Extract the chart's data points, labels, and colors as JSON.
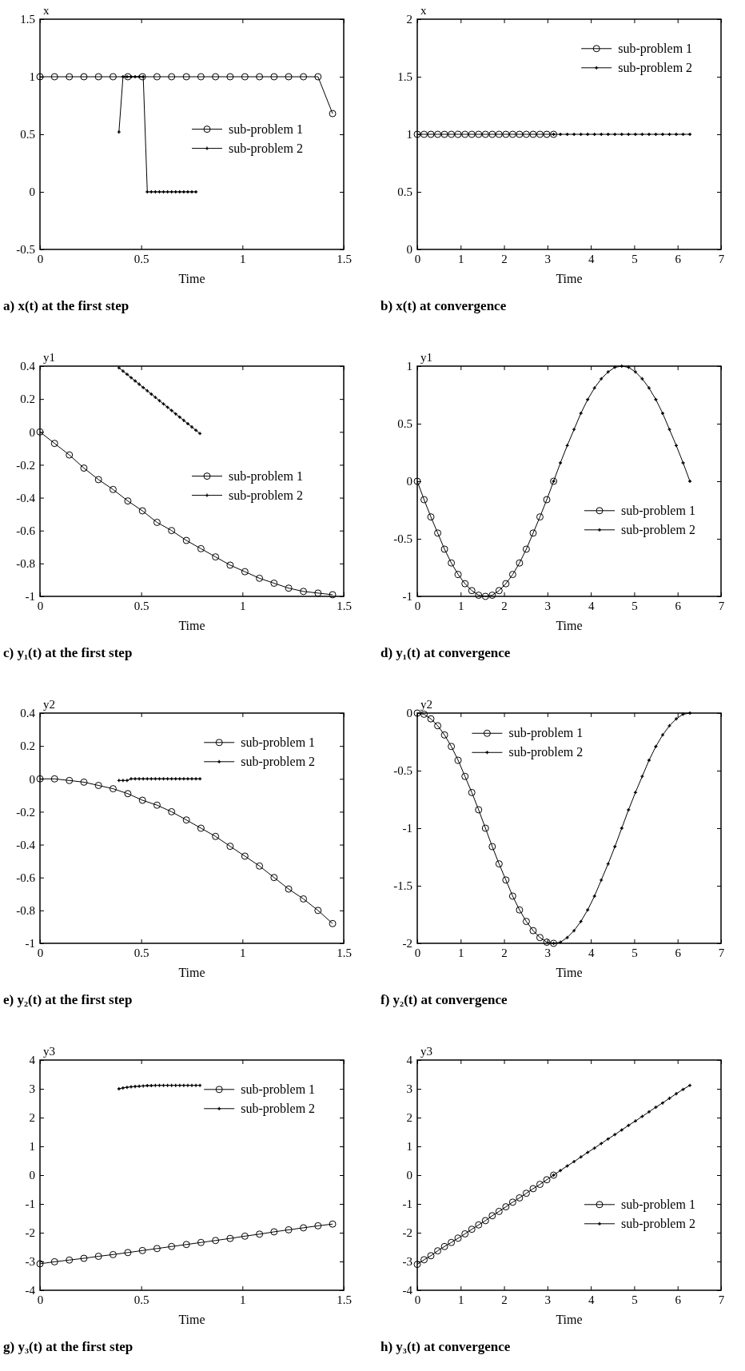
{
  "chart_data": [
    {
      "type": "line",
      "title": "a) x(t) at the first step",
      "xlabel": "Time",
      "ylabel": "x",
      "xlim": [
        0,
        1.5
      ],
      "xticks": [
        0,
        0.5,
        1,
        1.5
      ],
      "ylim": [
        -0.5,
        1.5
      ],
      "yticks": [
        -0.5,
        0,
        0.5,
        1,
        1.5
      ],
      "legend": "right",
      "series": [
        {
          "name": "sub-problem 1",
          "color": "#000000",
          "marker": "circle",
          "x": [
            0,
            0.072,
            0.145,
            0.217,
            0.289,
            0.361,
            0.434,
            0.506,
            0.578,
            0.65,
            0.723,
            0.795,
            0.867,
            0.939,
            1.012,
            1.084,
            1.156,
            1.228,
            1.301,
            1.373,
            1.445
          ],
          "values": [
            1,
            1,
            1,
            1,
            1,
            1,
            1,
            1,
            1,
            1,
            1,
            1,
            1,
            1,
            1,
            1,
            1,
            1,
            1,
            1,
            0.68
          ]
        },
        {
          "name": "sub-problem 2",
          "color": "#000000",
          "marker": "cross",
          "x": [
            0.39,
            0.41,
            0.43,
            0.45,
            0.47,
            0.49,
            0.51,
            0.53,
            0.55,
            0.57,
            0.59,
            0.61,
            0.63,
            0.65,
            0.67,
            0.69,
            0.71,
            0.73,
            0.75,
            0.77
          ],
          "values": [
            0.52,
            1,
            1,
            1,
            1,
            1,
            1,
            0,
            0,
            0,
            0,
            0,
            0,
            0,
            0,
            0,
            0,
            0,
            0,
            0
          ]
        }
      ]
    },
    {
      "type": "line",
      "title": "b) x(t) at convergence",
      "xlabel": "Time",
      "ylabel": "x",
      "xlim": [
        0,
        7
      ],
      "xticks": [
        0,
        1,
        2,
        3,
        4,
        5,
        6,
        7
      ],
      "ylim": [
        0,
        2
      ],
      "yticks": [
        0,
        0.5,
        1,
        1.5,
        2
      ],
      "legend": "top right",
      "series": [
        {
          "name": "sub-problem 1",
          "color": "#000000",
          "marker": "circle",
          "x": [
            0,
            0.157,
            0.314,
            0.471,
            0.628,
            0.785,
            0.942,
            1.1,
            1.257,
            1.414,
            1.571,
            1.728,
            1.885,
            2.042,
            2.199,
            2.356,
            2.513,
            2.67,
            2.827,
            2.985,
            3.142
          ],
          "values": [
            1,
            1,
            1,
            1,
            1,
            1,
            1,
            1,
            1,
            1,
            1,
            1,
            1,
            1,
            1,
            1,
            1,
            1,
            1,
            1,
            1
          ]
        },
        {
          "name": "sub-problem 2",
          "color": "#000000",
          "marker": "cross",
          "x": [
            3.142,
            3.299,
            3.456,
            3.613,
            3.77,
            3.927,
            4.084,
            4.241,
            4.398,
            4.555,
            4.712,
            4.869,
            5.027,
            5.184,
            5.341,
            5.498,
            5.655,
            5.812,
            5.969,
            6.126,
            6.283
          ],
          "values": [
            1,
            1,
            1,
            1,
            1,
            1,
            1,
            1,
            1,
            1,
            1,
            1,
            1,
            1,
            1,
            1,
            1,
            1,
            1,
            1,
            1
          ]
        }
      ]
    },
    {
      "type": "line",
      "title": "c) y₁(t) at the first step",
      "xlabel": "Time",
      "ylabel": "y1",
      "xlim": [
        0,
        1.5
      ],
      "xticks": [
        0,
        0.5,
        1,
        1.5
      ],
      "ylim": [
        -1,
        0.4
      ],
      "yticks": [
        -1,
        -0.8,
        -0.6,
        -0.4,
        -0.2,
        0,
        0.2,
        0.4
      ],
      "legend": "right",
      "series": [
        {
          "name": "sub-problem 1",
          "color": "#000000",
          "marker": "circle",
          "x": [
            0,
            0.072,
            0.145,
            0.217,
            0.289,
            0.361,
            0.434,
            0.506,
            0.578,
            0.65,
            0.723,
            0.795,
            0.867,
            0.939,
            1.012,
            1.084,
            1.156,
            1.228,
            1.301,
            1.373,
            1.445
          ],
          "values": [
            0,
            -0.07,
            -0.14,
            -0.22,
            -0.29,
            -0.35,
            -0.42,
            -0.48,
            -0.55,
            -0.6,
            -0.66,
            -0.71,
            -0.76,
            -0.81,
            -0.85,
            -0.89,
            -0.92,
            -0.95,
            -0.97,
            -0.98,
            -0.99
          ]
        },
        {
          "name": "sub-problem 2",
          "color": "#000000",
          "marker": "cross",
          "x": [
            0.39,
            0.41,
            0.43,
            0.45,
            0.47,
            0.49,
            0.51,
            0.53,
            0.55,
            0.57,
            0.59,
            0.61,
            0.63,
            0.65,
            0.67,
            0.69,
            0.71,
            0.73,
            0.75,
            0.77,
            0.79
          ],
          "values": [
            0.39,
            0.37,
            0.35,
            0.33,
            0.31,
            0.29,
            0.27,
            0.25,
            0.23,
            0.21,
            0.19,
            0.17,
            0.15,
            0.13,
            0.11,
            0.09,
            0.07,
            0.05,
            0.03,
            0.01,
            -0.01
          ]
        }
      ]
    },
    {
      "type": "line",
      "title": "d) y₁(t) at convergence",
      "xlabel": "Time",
      "ylabel": "y1",
      "xlim": [
        0,
        7
      ],
      "xticks": [
        0,
        1,
        2,
        3,
        4,
        5,
        6,
        7
      ],
      "ylim": [
        -1,
        1
      ],
      "yticks": [
        -1,
        -0.5,
        0,
        0.5,
        1
      ],
      "legend": "bottom right",
      "series": [
        {
          "name": "sub-problem 1",
          "color": "#000000",
          "marker": "circle",
          "x": [
            0,
            0.157,
            0.314,
            0.471,
            0.628,
            0.785,
            0.942,
            1.1,
            1.257,
            1.414,
            1.571,
            1.728,
            1.885,
            2.042,
            2.199,
            2.356,
            2.513,
            2.67,
            2.827,
            2.985,
            3.142
          ],
          "values": [
            0,
            -0.16,
            -0.31,
            -0.45,
            -0.59,
            -0.71,
            -0.81,
            -0.89,
            -0.95,
            -0.99,
            -1,
            -0.99,
            -0.95,
            -0.89,
            -0.81,
            -0.71,
            -0.59,
            -0.45,
            -0.31,
            -0.16,
            0
          ]
        },
        {
          "name": "sub-problem 2",
          "color": "#000000",
          "marker": "cross",
          "x": [
            3.142,
            3.299,
            3.456,
            3.613,
            3.77,
            3.927,
            4.084,
            4.241,
            4.398,
            4.555,
            4.712,
            4.869,
            5.027,
            5.184,
            5.341,
            5.498,
            5.655,
            5.812,
            5.969,
            6.126,
            6.283
          ],
          "values": [
            0,
            0.16,
            0.31,
            0.45,
            0.59,
            0.71,
            0.81,
            0.89,
            0.95,
            0.99,
            1,
            0.99,
            0.95,
            0.89,
            0.81,
            0.71,
            0.59,
            0.45,
            0.31,
            0.16,
            0
          ]
        }
      ]
    },
    {
      "type": "line",
      "title": "e) y₂(t) at the first step",
      "xlabel": "Time",
      "ylabel": "y2",
      "xlim": [
        0,
        1.5
      ],
      "xticks": [
        0,
        0.5,
        1,
        1.5
      ],
      "ylim": [
        -1,
        0.4
      ],
      "yticks": [
        -1,
        -0.8,
        -0.6,
        -0.4,
        -0.2,
        0,
        0.2,
        0.4
      ],
      "legend": "top right",
      "series": [
        {
          "name": "sub-problem 1",
          "color": "#000000",
          "marker": "circle",
          "x": [
            0,
            0.072,
            0.145,
            0.217,
            0.289,
            0.361,
            0.434,
            0.506,
            0.578,
            0.65,
            0.723,
            0.795,
            0.867,
            0.939,
            1.012,
            1.084,
            1.156,
            1.228,
            1.301,
            1.373,
            1.445
          ],
          "values": [
            0,
            0,
            -0.01,
            -0.02,
            -0.04,
            -0.06,
            -0.09,
            -0.13,
            -0.16,
            -0.2,
            -0.25,
            -0.3,
            -0.35,
            -0.41,
            -0.47,
            -0.53,
            -0.6,
            -0.67,
            -0.73,
            -0.8,
            -0.88
          ]
        },
        {
          "name": "sub-problem 2",
          "color": "#000000",
          "marker": "cross",
          "x": [
            0.39,
            0.41,
            0.43,
            0.45,
            0.47,
            0.49,
            0.51,
            0.53,
            0.55,
            0.57,
            0.59,
            0.61,
            0.63,
            0.65,
            0.67,
            0.69,
            0.71,
            0.73,
            0.75,
            0.77,
            0.79
          ],
          "values": [
            -0.01,
            -0.01,
            -0.01,
            0,
            0,
            0,
            0,
            0,
            0,
            0,
            0,
            0,
            0,
            0,
            0,
            0,
            0,
            0,
            0,
            0,
            0
          ]
        }
      ]
    },
    {
      "type": "line",
      "title": "f) y₂(t) at convergence",
      "xlabel": "Time",
      "ylabel": "y2",
      "xlim": [
        0,
        7
      ],
      "xticks": [
        0,
        1,
        2,
        3,
        4,
        5,
        6,
        7
      ],
      "ylim": [
        -2,
        0
      ],
      "yticks": [
        -2,
        -1.5,
        -1,
        -0.5,
        0
      ],
      "legend": "top",
      "series": [
        {
          "name": "sub-problem 1",
          "color": "#000000",
          "marker": "circle",
          "x": [
            0,
            0.157,
            0.314,
            0.471,
            0.628,
            0.785,
            0.942,
            1.1,
            1.257,
            1.414,
            1.571,
            1.728,
            1.885,
            2.042,
            2.199,
            2.356,
            2.513,
            2.67,
            2.827,
            2.985,
            3.142
          ],
          "values": [
            0,
            -0.01,
            -0.05,
            -0.11,
            -0.19,
            -0.29,
            -0.41,
            -0.55,
            -0.69,
            -0.84,
            -1,
            -1.16,
            -1.31,
            -1.45,
            -1.59,
            -1.71,
            -1.81,
            -1.89,
            -1.95,
            -1.99,
            -2
          ]
        },
        {
          "name": "sub-problem 2",
          "color": "#000000",
          "marker": "cross",
          "x": [
            3.142,
            3.299,
            3.456,
            3.613,
            3.77,
            3.927,
            4.084,
            4.241,
            4.398,
            4.555,
            4.712,
            4.869,
            5.027,
            5.184,
            5.341,
            5.498,
            5.655,
            5.812,
            5.969,
            6.126,
            6.283
          ],
          "values": [
            -2,
            -1.99,
            -1.95,
            -1.89,
            -1.81,
            -1.71,
            -1.59,
            -1.45,
            -1.31,
            -1.16,
            -1,
            -0.84,
            -0.69,
            -0.55,
            -0.41,
            -0.29,
            -0.19,
            -0.11,
            -0.05,
            -0.01,
            0
          ]
        }
      ]
    },
    {
      "type": "line",
      "title": "g) y₃(t) at the first step",
      "xlabel": "Time",
      "ylabel": "y3",
      "xlim": [
        0,
        1.5
      ],
      "xticks": [
        0,
        0.5,
        1,
        1.5
      ],
      "ylim": [
        -4,
        4
      ],
      "yticks": [
        -4,
        -3,
        -2,
        -1,
        0,
        1,
        2,
        3,
        4
      ],
      "legend": "top right",
      "series": [
        {
          "name": "sub-problem 1",
          "color": "#000000",
          "marker": "circle",
          "x": [
            0,
            0.072,
            0.145,
            0.217,
            0.289,
            0.361,
            0.434,
            0.506,
            0.578,
            0.65,
            0.723,
            0.795,
            0.867,
            0.939,
            1.012,
            1.084,
            1.156,
            1.228,
            1.301,
            1.373,
            1.445
          ],
          "values": [
            -3.08,
            -3.01,
            -2.95,
            -2.89,
            -2.82,
            -2.76,
            -2.69,
            -2.62,
            -2.55,
            -2.48,
            -2.41,
            -2.34,
            -2.27,
            -2.2,
            -2.12,
            -2.05,
            -1.97,
            -1.9,
            -1.83,
            -1.76,
            -1.7
          ]
        },
        {
          "name": "sub-problem 2",
          "color": "#000000",
          "marker": "cross",
          "x": [
            0.39,
            0.41,
            0.43,
            0.45,
            0.47,
            0.49,
            0.51,
            0.53,
            0.55,
            0.57,
            0.59,
            0.61,
            0.63,
            0.65,
            0.67,
            0.69,
            0.71,
            0.73,
            0.75,
            0.77,
            0.79
          ],
          "values": [
            3,
            3.03,
            3.05,
            3.07,
            3.08,
            3.09,
            3.1,
            3.11,
            3.11,
            3.12,
            3.12,
            3.12,
            3.12,
            3.12,
            3.12,
            3.12,
            3.12,
            3.12,
            3.12,
            3.12,
            3.12
          ]
        }
      ]
    },
    {
      "type": "line",
      "title": "h) y₃(t) at convergence",
      "xlabel": "Time",
      "ylabel": "y3",
      "xlim": [
        0,
        7
      ],
      "xticks": [
        0,
        1,
        2,
        3,
        4,
        5,
        6,
        7
      ],
      "ylim": [
        -4,
        4
      ],
      "yticks": [
        -4,
        -3,
        -2,
        -1,
        0,
        1,
        2,
        3,
        4
      ],
      "legend": "bottom right",
      "series": [
        {
          "name": "sub-problem 1",
          "color": "#000000",
          "marker": "circle",
          "x": [
            0,
            0.157,
            0.314,
            0.471,
            0.628,
            0.785,
            0.942,
            1.1,
            1.257,
            1.414,
            1.571,
            1.728,
            1.885,
            2.042,
            2.199,
            2.356,
            2.513,
            2.67,
            2.827,
            2.985,
            3.142
          ],
          "values": [
            -3.1,
            -2.94,
            -2.8,
            -2.63,
            -2.48,
            -2.34,
            -2.19,
            -2.04,
            -1.88,
            -1.73,
            -1.58,
            -1.41,
            -1.26,
            -1.1,
            -0.94,
            -0.79,
            -0.63,
            -0.47,
            -0.32,
            -0.16,
            0
          ]
        },
        {
          "name": "sub-problem 2",
          "color": "#000000",
          "marker": "cross",
          "x": [
            3.142,
            3.299,
            3.456,
            3.613,
            3.77,
            3.927,
            4.084,
            4.241,
            4.398,
            4.555,
            4.712,
            4.869,
            5.027,
            5.184,
            5.341,
            5.498,
            5.655,
            5.812,
            5.969,
            6.126,
            6.283
          ],
          "values": [
            0,
            0.16,
            0.32,
            0.47,
            0.63,
            0.79,
            0.94,
            1.1,
            1.26,
            1.41,
            1.57,
            1.73,
            1.88,
            2.04,
            2.2,
            2.36,
            2.51,
            2.67,
            2.83,
            2.98,
            3.12
          ]
        }
      ]
    }
  ]
}
